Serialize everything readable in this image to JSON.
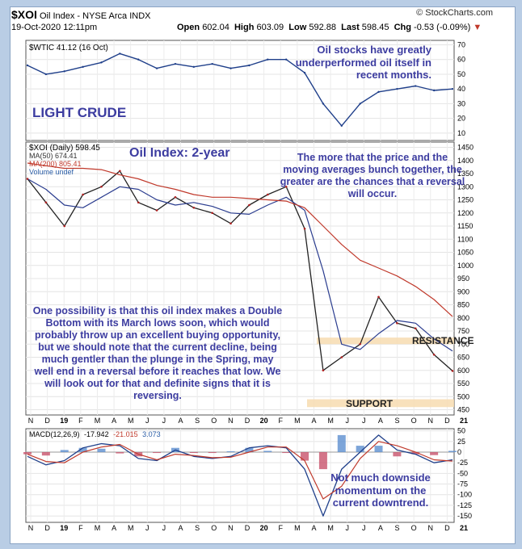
{
  "header": {
    "symbol": "$XOI",
    "name": "Oil Index - NYSE Arca INDX",
    "source": "© StockCharts.com",
    "datetime": "19-Oct-2020 12:11pm",
    "open_label": "Open",
    "open": "602.04",
    "high_label": "High",
    "high": "603.09",
    "low_label": "Low",
    "low": "592.88",
    "last_label": "Last",
    "last": "598.45",
    "chg_label": "Chg",
    "chg": "-0.53 (-0.09%)"
  },
  "annotations": {
    "oil_underperform": "Oil stocks have greatly underperformed oil itself in recent months.",
    "light_crude": "LIGHT CRUDE",
    "oil_index_title": "Oil Index: 2-year",
    "bunch": "The more that the price and the moving averages bunch together, the greater are the chances that a reversal will occur.",
    "possibility": "One possibility is that this oil index makes a Double Bottom with its March lows soon, which would probably throw up an excellent buying opportunity, but we should note that the current decline, being much gentler than the plunge in the Spring, may well end in a reversal before it reaches that low. We will look out for that and definite signs that it is reversing.",
    "resistance": "RESISTANCE",
    "support": "SUPPORT",
    "momentum": "Not much downside momentum on the current downtrend."
  },
  "chart_data": [
    {
      "type": "line",
      "panel": "wtic",
      "legend": "$WTIC 41.12 (16 Oct)",
      "x": [
        "2018-11",
        "2018-12",
        "2019-01",
        "2019-02",
        "2019-03",
        "2019-04",
        "2019-05",
        "2019-06",
        "2019-07",
        "2019-08",
        "2019-09",
        "2019-10",
        "2019-11",
        "2019-12",
        "2020-01",
        "2020-02",
        "2020-03",
        "2020-04",
        "2020-05",
        "2020-06",
        "2020-07",
        "2020-08",
        "2020-09",
        "2020-10"
      ],
      "values": [
        56,
        50,
        52,
        55,
        58,
        64,
        60,
        54,
        57,
        55,
        57,
        54,
        56,
        60,
        60,
        51,
        30,
        15,
        30,
        38,
        40,
        42,
        39,
        40
      ],
      "ylim": [
        5,
        73
      ],
      "yticks": [
        10,
        20,
        30,
        40,
        50,
        60,
        70
      ]
    },
    {
      "type": "line",
      "panel": "xoi",
      "legend": [
        "$XOI (Daily) 598.45",
        "MA(50) 674.41",
        "MA(200) 805.41",
        "Volume undef"
      ],
      "x": [
        "2018-11",
        "2018-12",
        "2019-01",
        "2019-02",
        "2019-03",
        "2019-04",
        "2019-05",
        "2019-06",
        "2019-07",
        "2019-08",
        "2019-09",
        "2019-10",
        "2019-11",
        "2019-12",
        "2020-01",
        "2020-02",
        "2020-03",
        "2020-04",
        "2020-05",
        "2020-06",
        "2020-07",
        "2020-08",
        "2020-09",
        "2020-10"
      ],
      "series": [
        {
          "name": "$XOI (Daily) 598.45",
          "values": [
            1330,
            1240,
            1150,
            1270,
            1300,
            1360,
            1240,
            1210,
            1260,
            1220,
            1200,
            1160,
            1230,
            1270,
            1300,
            1140,
            600,
            650,
            700,
            880,
            780,
            760,
            660,
            598
          ]
        },
        {
          "name": "MA(50) 674.41",
          "values": [
            1330,
            1290,
            1230,
            1220,
            1260,
            1300,
            1290,
            1250,
            1230,
            1240,
            1225,
            1200,
            1195,
            1230,
            1260,
            1210,
            980,
            700,
            680,
            740,
            790,
            780,
            720,
            674
          ]
        },
        {
          "name": "MA(200) 805.41",
          "values": [
            1390,
            1380,
            1370,
            1370,
            1365,
            1345,
            1330,
            1305,
            1290,
            1270,
            1260,
            1260,
            1255,
            1250,
            1245,
            1220,
            1150,
            1080,
            1020,
            990,
            960,
            920,
            870,
            805
          ]
        }
      ],
      "ylim": [
        430,
        1470
      ],
      "yticks": [
        450,
        500,
        550,
        600,
        650,
        700,
        750,
        800,
        850,
        900,
        950,
        1000,
        1050,
        1100,
        1150,
        1200,
        1250,
        1300,
        1350,
        1400,
        1450
      ],
      "resistance_band": [
        700,
        725
      ],
      "support_band": [
        460,
        490
      ]
    },
    {
      "type": "line",
      "panel": "macd",
      "legend": [
        "MACD(12,26,9)",
        "-17.942",
        "-21.015",
        "3.073"
      ],
      "x": [
        "2018-11",
        "2018-12",
        "2019-01",
        "2019-02",
        "2019-03",
        "2019-04",
        "2019-05",
        "2019-06",
        "2019-07",
        "2019-08",
        "2019-09",
        "2019-10",
        "2019-11",
        "2019-12",
        "2020-01",
        "2020-02",
        "2020-03",
        "2020-04",
        "2020-05",
        "2020-06",
        "2020-07",
        "2020-08",
        "2020-09",
        "2020-10"
      ],
      "series": [
        {
          "name": "MACD",
          "values": [
            -10,
            -30,
            -20,
            10,
            20,
            15,
            -15,
            -20,
            5,
            -10,
            -15,
            -10,
            10,
            15,
            10,
            -40,
            -150,
            -40,
            0,
            40,
            5,
            -5,
            -25,
            -18
          ]
        },
        {
          "name": "Signal",
          "values": [
            -5,
            -22,
            -25,
            0,
            12,
            18,
            -5,
            -18,
            -5,
            -8,
            -13,
            -12,
            0,
            12,
            12,
            -20,
            -110,
            -80,
            -15,
            25,
            15,
            0,
            -18,
            -21
          ]
        }
      ],
      "ylim": [
        -165,
        55
      ],
      "yticks": [
        -150,
        -125,
        -100,
        -75,
        -50,
        -25,
        0,
        25,
        50
      ]
    }
  ],
  "x_axis_labels": [
    "N",
    "D",
    "19",
    "F",
    "M",
    "A",
    "M",
    "J",
    "J",
    "A",
    "S",
    "O",
    "N",
    "D",
    "20",
    "F",
    "M",
    "A",
    "M",
    "J",
    "J",
    "A",
    "S",
    "O",
    "N",
    "D",
    "21"
  ]
}
